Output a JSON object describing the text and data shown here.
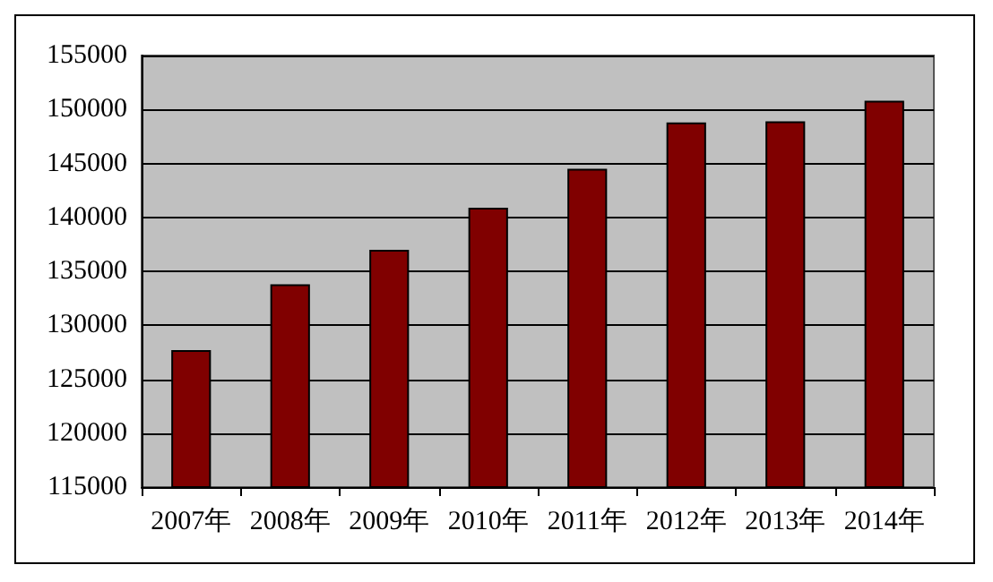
{
  "chart_data": {
    "type": "bar",
    "categories": [
      "2007年",
      "2008年",
      "2009年",
      "2010年",
      "2011年",
      "2012年",
      "2013年",
      "2014年"
    ],
    "values": [
      127700,
      133800,
      137000,
      140900,
      144500,
      148800,
      148900,
      150800
    ],
    "color": "#800000",
    "ylim": [
      115000,
      155000
    ],
    "yticks": [
      115000,
      120000,
      125000,
      130000,
      135000,
      140000,
      145000,
      150000,
      155000
    ],
    "grid": "y"
  }
}
